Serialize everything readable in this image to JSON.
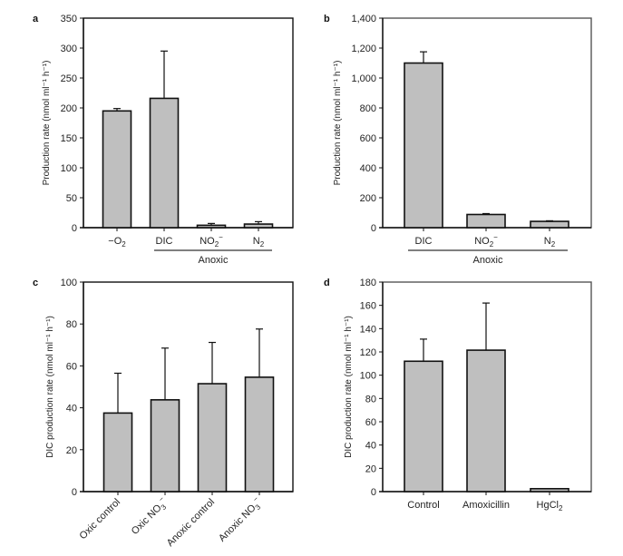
{
  "chart_data": [
    {
      "panel": "a",
      "type": "bar",
      "title": "",
      "xlabel": "",
      "ylabel": "Production rate (nmol ml⁻¹ h⁻¹)",
      "ylim": [
        0,
        350
      ],
      "yticks": [
        0,
        50,
        100,
        150,
        200,
        250,
        300,
        350
      ],
      "ytick_labels": [
        "0",
        "50",
        "100",
        "150",
        "200",
        "250",
        "300",
        "350"
      ],
      "categories": [
        {
          "base": "−O",
          "sub": "2",
          "sup": ""
        },
        {
          "base": "DIC",
          "sub": "",
          "sup": ""
        },
        {
          "base": "NO",
          "sub": "2",
          "sup": "−"
        },
        {
          "base": "N",
          "sub": "2",
          "sup": ""
        }
      ],
      "values": [
        195,
        216,
        4,
        6
      ],
      "error_upper": [
        199,
        295,
        7,
        10
      ],
      "group": {
        "label": "Anoxic",
        "from_index": 1,
        "to_index": 3
      },
      "grid": false
    },
    {
      "panel": "b",
      "type": "bar",
      "title": "",
      "xlabel": "",
      "ylabel": "Production rate (nmol ml⁻¹ h⁻¹)",
      "ylim": [
        0,
        1400
      ],
      "yticks": [
        0,
        200,
        400,
        600,
        800,
        1000,
        1200,
        1400
      ],
      "ytick_labels": [
        "0",
        "200",
        "400",
        "600",
        "800",
        "1,000",
        "1,200",
        "1,400"
      ],
      "categories": [
        {
          "base": "DIC",
          "sub": "",
          "sup": ""
        },
        {
          "base": "NO",
          "sub": "2",
          "sup": "−"
        },
        {
          "base": "N",
          "sub": "2",
          "sup": ""
        }
      ],
      "values": [
        1100,
        88,
        42
      ],
      "error_upper": [
        1175,
        94,
        46
      ],
      "group": {
        "label": "Anoxic",
        "from_index": 0,
        "to_index": 2
      },
      "grid": false
    },
    {
      "panel": "c",
      "type": "bar",
      "title": "",
      "xlabel": "",
      "ylabel": "DIC production rate (nmol ml⁻¹ h⁻¹)",
      "ylim": [
        0,
        100
      ],
      "yticks": [
        0,
        20,
        40,
        60,
        80,
        100
      ],
      "ytick_labels": [
        "0",
        "20",
        "40",
        "60",
        "80",
        "100"
      ],
      "categories": [
        {
          "base": "Oxic control",
          "sub": "",
          "sup": ""
        },
        {
          "base": "Oxic NO",
          "sub": "3",
          "sup": "−"
        },
        {
          "base": "Anoxic control",
          "sub": "",
          "sup": ""
        },
        {
          "base": "Anoxic NO",
          "sub": "3",
          "sup": "−"
        }
      ],
      "rotated_labels": true,
      "values": [
        37.5,
        43.8,
        51.5,
        54.6
      ],
      "error_upper": [
        56.5,
        68.5,
        71.2,
        77.6
      ],
      "grid": false
    },
    {
      "panel": "d",
      "type": "bar",
      "title": "",
      "xlabel": "",
      "ylabel": "DIC production rate (nmol ml⁻¹ h⁻¹)",
      "ylim": [
        0,
        180
      ],
      "yticks": [
        0,
        20,
        40,
        60,
        80,
        100,
        120,
        140,
        160,
        180
      ],
      "ytick_labels": [
        "0",
        "20",
        "40",
        "60",
        "80",
        "100",
        "120",
        "140",
        "160",
        "180"
      ],
      "categories": [
        {
          "base": "Control",
          "sub": "",
          "sup": ""
        },
        {
          "base": "Amoxicillin",
          "sub": "",
          "sup": ""
        },
        {
          "base": "HgCl",
          "sub": "2",
          "sup": ""
        }
      ],
      "values": [
        112,
        121.5,
        2.5
      ],
      "error_upper": [
        131,
        162,
        2.5
      ],
      "grid": false
    }
  ],
  "colors": {
    "bar_fill": "#bfbfbf",
    "bar_stroke": "#111111"
  }
}
